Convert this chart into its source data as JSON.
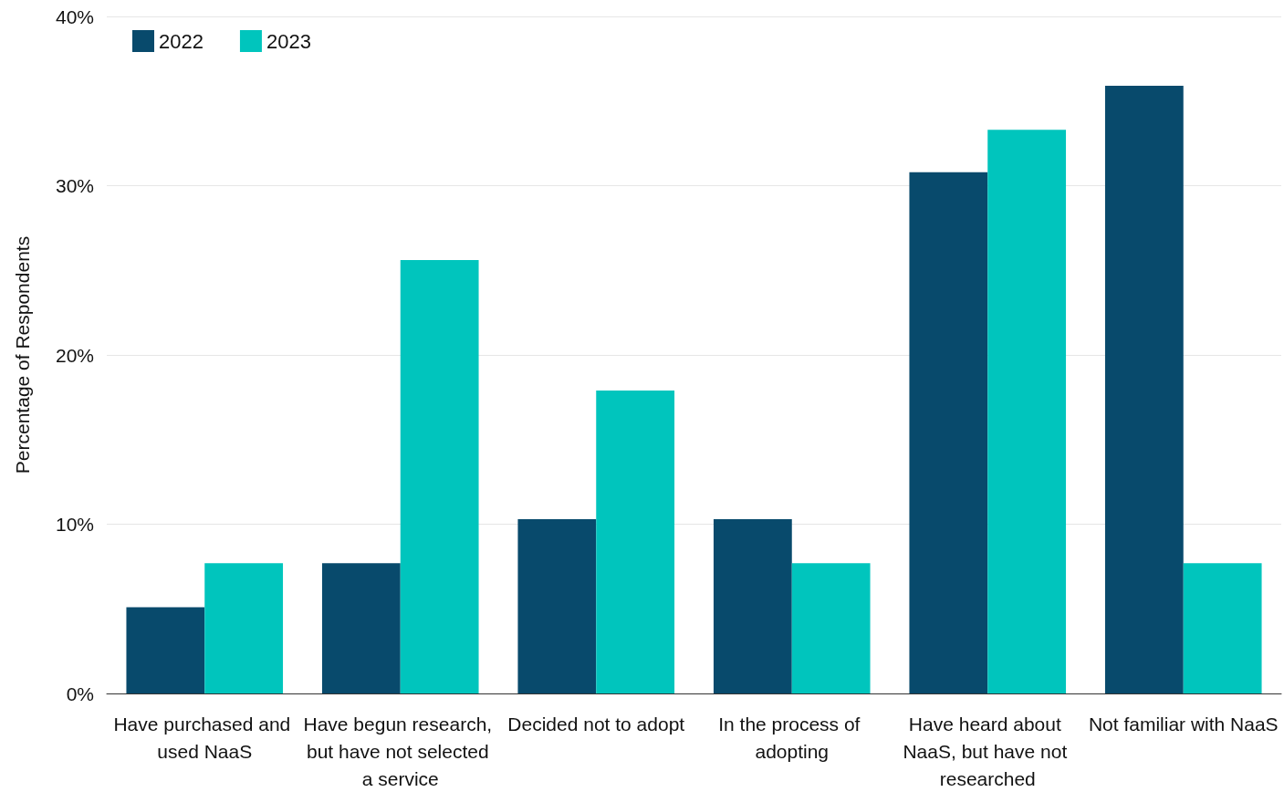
{
  "chart_data": {
    "type": "bar",
    "ylabel": "Percentage of Respondents",
    "categories": [
      "Have purchased and used NaaS",
      "Have begun research, but have not selected a service",
      "Decided not to adopt",
      "In the process of adopting",
      "Have heard about NaaS, but have not researched",
      "Not familiar with NaaS"
    ],
    "series": [
      {
        "name": "2022",
        "color": "#084a6c",
        "values": [
          5.1,
          7.7,
          10.3,
          10.3,
          30.8,
          35.9
        ]
      },
      {
        "name": "2023",
        "color": "#00c5bd",
        "values": [
          7.7,
          25.6,
          17.9,
          7.7,
          33.3,
          7.7
        ]
      }
    ],
    "ylim": [
      0,
      40
    ],
    "yticks": [
      {
        "value": 0,
        "label": "0%"
      },
      {
        "value": 10,
        "label": "10%"
      },
      {
        "value": 20,
        "label": "20%"
      },
      {
        "value": 30,
        "label": "30%"
      },
      {
        "value": 40,
        "label": "40%"
      }
    ],
    "grid": "y",
    "legend": "top left"
  }
}
